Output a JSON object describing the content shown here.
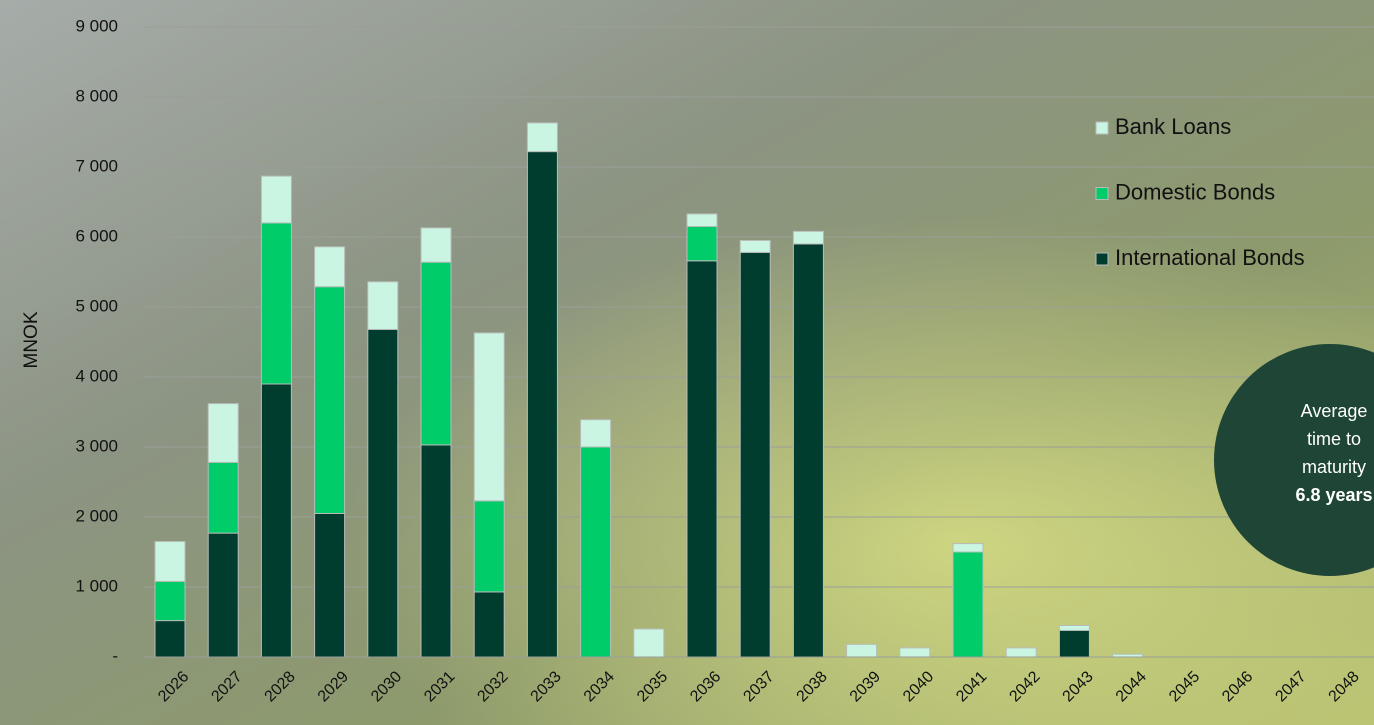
{
  "chart_data": {
    "type": "stacked_bar",
    "y_axis_label": "MNOK",
    "categories": [
      "2026",
      "2027",
      "2028",
      "2029",
      "2030",
      "2031",
      "2032",
      "2033",
      "2034",
      "2035",
      "2036",
      "2037",
      "2038",
      "2039",
      "2040",
      "2041",
      "2042",
      "2043",
      "2044",
      "2045",
      "2046",
      "2047",
      "2048"
    ],
    "series": [
      {
        "name": "International Bonds",
        "color": "#003d2e",
        "values": [
          520,
          1770,
          3900,
          2050,
          4680,
          3030,
          930,
          7220,
          0,
          0,
          5660,
          5780,
          5900,
          0,
          0,
          0,
          0,
          380,
          0,
          0,
          0,
          0,
          0
        ]
      },
      {
        "name": "Domestic Bonds",
        "color": "#00cc6a",
        "values": [
          560,
          1010,
          2300,
          3240,
          0,
          2610,
          1300,
          0,
          3000,
          0,
          490,
          0,
          0,
          0,
          0,
          1500,
          0,
          0,
          0,
          0,
          0,
          0,
          0
        ]
      },
      {
        "name": "Bank Loans",
        "color": "#c9f5e2",
        "values": [
          570,
          840,
          670,
          570,
          680,
          490,
          2400,
          410,
          390,
          400,
          180,
          170,
          180,
          180,
          130,
          120,
          130,
          70,
          40,
          0,
          0,
          0,
          0
        ]
      }
    ],
    "ylim": [
      0,
      9000
    ],
    "yticks": [
      {
        "value": 0,
        "label": "-"
      },
      {
        "value": 1000,
        "label": "1 000"
      },
      {
        "value": 2000,
        "label": "2 000"
      },
      {
        "value": 3000,
        "label": "3 000"
      },
      {
        "value": 4000,
        "label": "4 000"
      },
      {
        "value": 5000,
        "label": "5 000"
      },
      {
        "value": 6000,
        "label": "6 000"
      },
      {
        "value": 7000,
        "label": "7 000"
      },
      {
        "value": 8000,
        "label": "8 000"
      },
      {
        "value": 9000,
        "label": "9 000"
      }
    ],
    "grid": true,
    "legend": "top-right",
    "annotation": {
      "lines": [
        "Average",
        "time to",
        "maturity"
      ],
      "highlight": "6.8 years"
    }
  }
}
